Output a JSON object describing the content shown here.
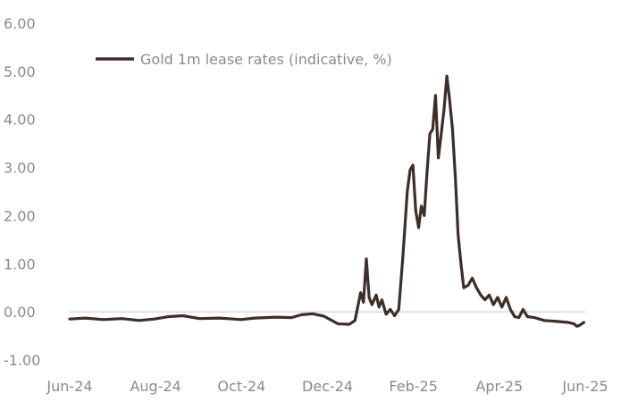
{
  "chart_data": {
    "type": "line",
    "title": "",
    "xlabel": "",
    "ylabel": "",
    "ylim": [
      -1.0,
      6.0
    ],
    "xlim": [
      "2024-06-01",
      "2025-06-01"
    ],
    "grid": false,
    "legend_position": "top-left",
    "y_ticks": [
      "6.00",
      "5.00",
      "4.00",
      "3.00",
      "2.00",
      "1.00",
      "0.00",
      "-1.00"
    ],
    "x_ticks": [
      "Jun-24",
      "Aug-24",
      "Oct-24",
      "Dec-24",
      "Feb-25",
      "Apr-25",
      "Jun-25"
    ],
    "colors": {
      "line": "#3d2e27",
      "baseline": "#c8c8c8",
      "text": "#8a8a8a"
    },
    "series": [
      {
        "name": "Gold 1m  lease rates (indicative, %)",
        "points": [
          [
            "2024-06-01",
            -0.15
          ],
          [
            "2024-06-12",
            -0.13
          ],
          [
            "2024-06-25",
            -0.16
          ],
          [
            "2024-07-08",
            -0.14
          ],
          [
            "2024-07-20",
            -0.18
          ],
          [
            "2024-07-31",
            -0.15
          ],
          [
            "2024-08-10",
            -0.1
          ],
          [
            "2024-08-20",
            -0.08
          ],
          [
            "2024-09-01",
            -0.14
          ],
          [
            "2024-09-15",
            -0.13
          ],
          [
            "2024-09-30",
            -0.16
          ],
          [
            "2024-10-10",
            -0.13
          ],
          [
            "2024-10-25",
            -0.11
          ],
          [
            "2024-11-05",
            -0.12
          ],
          [
            "2024-11-12",
            -0.06
          ],
          [
            "2024-11-20",
            -0.04
          ],
          [
            "2024-11-28",
            -0.09
          ],
          [
            "2024-12-08",
            -0.25
          ],
          [
            "2024-12-16",
            -0.26
          ],
          [
            "2024-12-20",
            -0.18
          ],
          [
            "2024-12-24",
            0.4
          ],
          [
            "2024-12-26",
            0.2
          ],
          [
            "2024-12-28",
            1.1
          ],
          [
            "2024-12-30",
            0.3
          ],
          [
            "2025-01-01",
            0.15
          ],
          [
            "2025-01-04",
            0.35
          ],
          [
            "2025-01-06",
            0.1
          ],
          [
            "2025-01-08",
            0.25
          ],
          [
            "2025-01-11",
            -0.05
          ],
          [
            "2025-01-14",
            0.05
          ],
          [
            "2025-01-17",
            -0.08
          ],
          [
            "2025-01-20",
            0.05
          ],
          [
            "2025-01-23",
            1.2
          ],
          [
            "2025-01-26",
            2.5
          ],
          [
            "2025-01-28",
            2.95
          ],
          [
            "2025-01-30",
            3.05
          ],
          [
            "2025-02-01",
            2.1
          ],
          [
            "2025-02-03",
            1.75
          ],
          [
            "2025-02-05",
            2.2
          ],
          [
            "2025-02-07",
            2.0
          ],
          [
            "2025-02-09",
            2.9
          ],
          [
            "2025-02-11",
            3.7
          ],
          [
            "2025-02-13",
            3.8
          ],
          [
            "2025-02-15",
            4.5
          ],
          [
            "2025-02-17",
            3.2
          ],
          [
            "2025-02-19",
            3.7
          ],
          [
            "2025-02-21",
            4.2
          ],
          [
            "2025-02-23",
            4.9
          ],
          [
            "2025-02-25",
            4.4
          ],
          [
            "2025-02-27",
            3.8
          ],
          [
            "2025-03-01",
            2.8
          ],
          [
            "2025-03-03",
            1.6
          ],
          [
            "2025-03-05",
            1.0
          ],
          [
            "2025-03-07",
            0.5
          ],
          [
            "2025-03-10",
            0.55
          ],
          [
            "2025-03-13",
            0.7
          ],
          [
            "2025-03-16",
            0.5
          ],
          [
            "2025-03-19",
            0.35
          ],
          [
            "2025-03-22",
            0.25
          ],
          [
            "2025-03-25",
            0.35
          ],
          [
            "2025-03-28",
            0.15
          ],
          [
            "2025-03-31",
            0.3
          ],
          [
            "2025-04-03",
            0.1
          ],
          [
            "2025-04-06",
            0.3
          ],
          [
            "2025-04-09",
            0.05
          ],
          [
            "2025-04-12",
            -0.1
          ],
          [
            "2025-04-15",
            -0.12
          ],
          [
            "2025-04-18",
            0.05
          ],
          [
            "2025-04-21",
            -0.1
          ],
          [
            "2025-04-26",
            -0.12
          ],
          [
            "2025-05-03",
            -0.18
          ],
          [
            "2025-05-12",
            -0.2
          ],
          [
            "2025-05-20",
            -0.22
          ],
          [
            "2025-05-24",
            -0.25
          ],
          [
            "2025-05-26",
            -0.3
          ],
          [
            "2025-05-28",
            -0.28
          ],
          [
            "2025-05-31",
            -0.22
          ]
        ]
      }
    ]
  }
}
